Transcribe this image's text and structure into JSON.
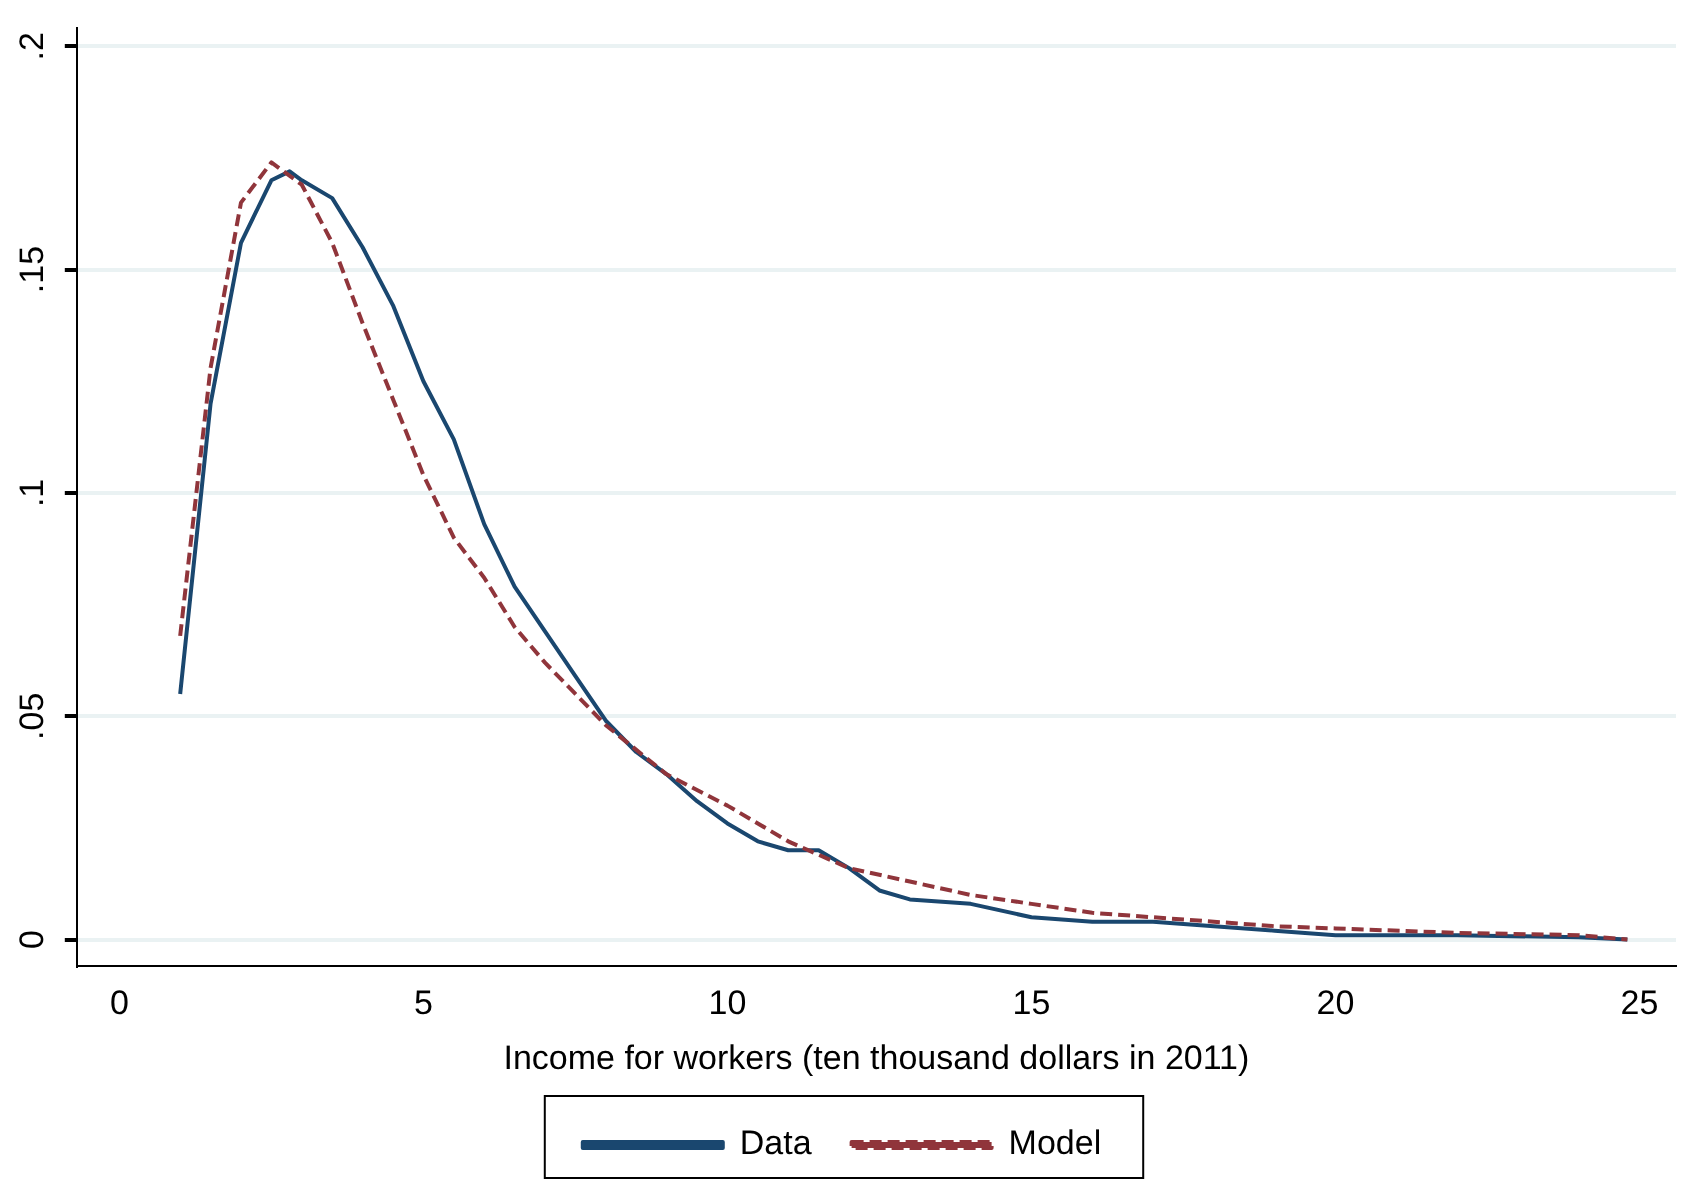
{
  "chart_data": {
    "type": "line",
    "xlabel": "Income for workers (ten thousand dollars in 2011)",
    "xlim": [
      -0.7,
      25.6
    ],
    "xticks": [
      0,
      5,
      10,
      15,
      20,
      25
    ],
    "ylim": [
      -0.006,
      0.204
    ],
    "yticks": [
      0,
      {
        "value": 0.05,
        "label": ".05"
      },
      {
        "value": 0.1,
        "label": ".1"
      },
      {
        "value": 0.15,
        "label": ".15"
      },
      {
        "value": 0.2,
        "label": ".2"
      }
    ],
    "grid": "y",
    "legend": "bottom",
    "marker": "none",
    "series": [
      {
        "name": "Data",
        "color": "#1a476f",
        "line_style": "solid",
        "x": [
          1,
          1.5,
          2,
          2.5,
          2.8,
          3,
          3.5,
          4,
          4.5,
          5,
          5.5,
          6,
          6.5,
          7,
          7.5,
          8,
          8.5,
          9,
          9.5,
          10,
          10.5,
          11,
          11.5,
          12,
          12.5,
          13,
          14,
          15,
          16,
          17,
          18,
          19,
          20,
          22,
          24,
          24.8
        ],
        "values": [
          0.055,
          0.12,
          0.156,
          0.17,
          0.172,
          0.17,
          0.166,
          0.155,
          0.142,
          0.125,
          0.112,
          0.093,
          0.079,
          0.069,
          0.059,
          0.049,
          0.042,
          0.037,
          0.031,
          0.026,
          0.022,
          0.02,
          0.02,
          0.016,
          0.011,
          0.009,
          0.008,
          0.005,
          0.004,
          0.004,
          0.003,
          0.002,
          0.001,
          0.001,
          0.0005,
          0
        ]
      },
      {
        "name": "Model",
        "color": "#90353b",
        "line_style": "dashed",
        "x": [
          1,
          1.5,
          2,
          2.5,
          3,
          3.5,
          4,
          4.5,
          5,
          5.5,
          6,
          6.5,
          7,
          7.5,
          8,
          9,
          10,
          11,
          12,
          13,
          14,
          15,
          16,
          17,
          18,
          19,
          20,
          22,
          24,
          24.8
        ],
        "values": [
          0.068,
          0.128,
          0.165,
          0.174,
          0.169,
          0.156,
          0.138,
          0.121,
          0.104,
          0.09,
          0.081,
          0.07,
          0.062,
          0.055,
          0.048,
          0.037,
          0.03,
          0.022,
          0.016,
          0.013,
          0.01,
          0.008,
          0.006,
          0.005,
          0.004,
          0.003,
          0.0025,
          0.0015,
          0.001,
          0
        ]
      }
    ]
  }
}
